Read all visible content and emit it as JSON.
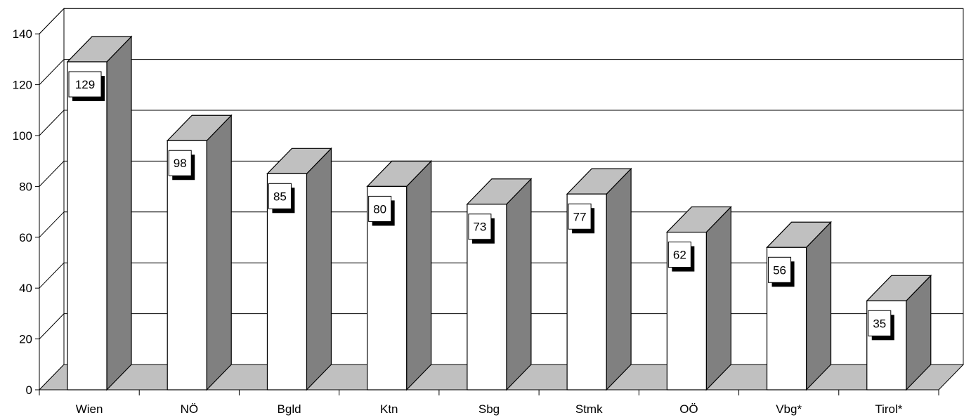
{
  "chart_data": {
    "type": "bar",
    "style": "3d-column",
    "categories": [
      "Wien",
      "NÖ",
      "Bgld",
      "Ktn",
      "Sbg",
      "Stmk",
      "OÖ",
      "Vbg*",
      "Tirol*"
    ],
    "values": [
      129,
      98,
      85,
      80,
      73,
      77,
      62,
      56,
      35
    ],
    "data_labels": [
      "129",
      "98",
      "85",
      "80",
      "73",
      "77",
      "62",
      "56",
      "35"
    ],
    "ylim": [
      0,
      140
    ],
    "yticks": [
      0,
      20,
      40,
      60,
      80,
      100,
      120,
      140
    ],
    "grid": true,
    "legend": "none",
    "title": "",
    "xlabel": "",
    "ylabel": "",
    "colors": {
      "bar_front": "#ffffff",
      "bar_top": "#c0c0c0",
      "bar_side": "#808080",
      "floor": "#c0c0c0",
      "outline": "#000000"
    }
  }
}
